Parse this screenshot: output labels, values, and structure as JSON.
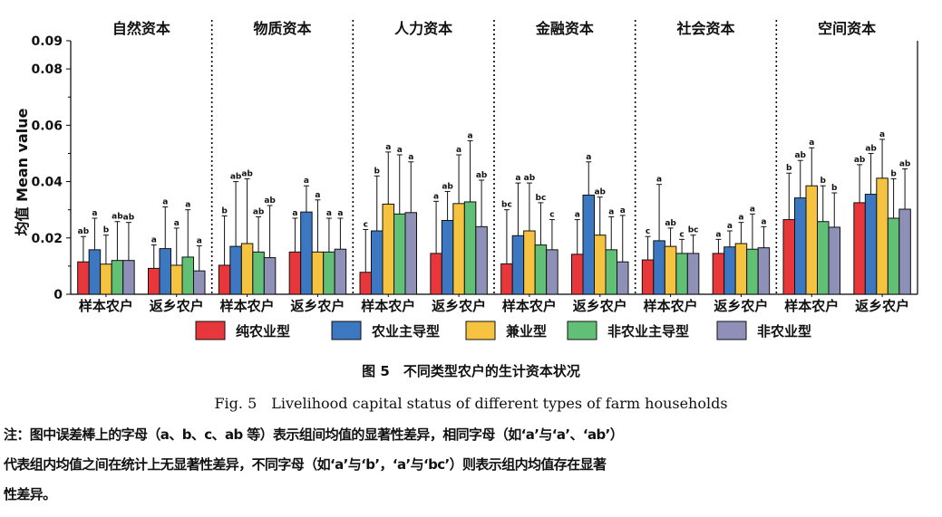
{
  "chart_data": {
    "type": "bar",
    "ylabel": "均值 Mean value",
    "ylim": [
      0,
      0.09
    ],
    "yticks": [
      "0",
      "0.02",
      "0.04",
      "0.06",
      "0.08",
      "0.09"
    ],
    "ytick_values": [
      0,
      0.02,
      0.04,
      0.06,
      0.08,
      0.09
    ],
    "legend_position": "bottom",
    "series": [
      {
        "name": "纯农业型",
        "color": "#e8373b"
      },
      {
        "name": "农业主导型",
        "color": "#3b78c1"
      },
      {
        "name": "兼业型",
        "color": "#f6c341"
      },
      {
        "name": "非农业主导型",
        "color": "#62bf76"
      },
      {
        "name": "非农业型",
        "color": "#8e90b8"
      }
    ],
    "panels": [
      {
        "title": "自然资本",
        "groups": [
          {
            "label": "样本农户",
            "values": [
              0.0115,
              0.0158,
              0.0107,
              0.012,
              0.012
            ],
            "errors": [
              0.0205,
              0.027,
              0.021,
              0.0258,
              0.0255
            ],
            "letters": [
              "ab",
              "a",
              "b",
              "ab",
              "ab"
            ]
          },
          {
            "label": "返乡农户",
            "values": [
              0.0092,
              0.0162,
              0.0103,
              0.0132,
              0.0083
            ],
            "errors": [
              0.0175,
              0.031,
              0.0235,
              0.03,
              0.0172
            ],
            "letters": [
              "a",
              "a",
              "a",
              "a",
              "a"
            ]
          }
        ]
      },
      {
        "title": "物质资本",
        "groups": [
          {
            "label": "样本农户",
            "values": [
              0.0103,
              0.017,
              0.018,
              0.015,
              0.013
            ],
            "errors": [
              0.0278,
              0.04,
              0.041,
              0.0275,
              0.0315
            ],
            "letters": [
              "b",
              "ab",
              "ab",
              "ab",
              "ab"
            ]
          },
          {
            "label": "返乡农户",
            "values": [
              0.015,
              0.0292,
              0.015,
              0.015,
              0.016
            ],
            "errors": [
              0.027,
              0.0385,
              0.0335,
              0.027,
              0.027
            ],
            "letters": [
              "a",
              "a",
              "a",
              "a",
              "a"
            ]
          }
        ]
      },
      {
        "title": "人力资本",
        "groups": [
          {
            "label": "样本农户",
            "values": [
              0.0078,
              0.0225,
              0.032,
              0.0285,
              0.029
            ],
            "errors": [
              0.023,
              0.042,
              0.0505,
              0.0495,
              0.047
            ],
            "letters": [
              "c",
              "b",
              "a",
              "a",
              "a"
            ]
          },
          {
            "label": "返乡农户",
            "values": [
              0.0145,
              0.0262,
              0.0322,
              0.0328,
              0.024
            ],
            "errors": [
              0.033,
              0.0365,
              0.0495,
              0.0545,
              0.0405
            ],
            "letters": [
              "a",
              "ab",
              "a",
              "a",
              "ab"
            ]
          }
        ]
      },
      {
        "title": "金融资本",
        "groups": [
          {
            "label": "样本农户",
            "values": [
              0.0108,
              0.0208,
              0.0225,
              0.0175,
              0.0158
            ],
            "errors": [
              0.03,
              0.0395,
              0.0395,
              0.0325,
              0.0265
            ],
            "letters": [
              "bc",
              "a",
              "ab",
              "bc",
              "c"
            ]
          },
          {
            "label": "返乡农户",
            "values": [
              0.0142,
              0.0352,
              0.021,
              0.0158,
              0.0115
            ],
            "errors": [
              0.0265,
              0.047,
              0.0345,
              0.0275,
              0.028
            ],
            "letters": [
              "a",
              "a",
              "ab",
              "a",
              "a"
            ]
          }
        ]
      },
      {
        "title": "社会资本",
        "groups": [
          {
            "label": "样本农户",
            "values": [
              0.0122,
              0.019,
              0.017,
              0.0145,
              0.0145
            ],
            "errors": [
              0.0205,
              0.039,
              0.0235,
              0.0195,
              0.021
            ],
            "letters": [
              "c",
              "a",
              "ab",
              "c",
              "bc"
            ]
          },
          {
            "label": "返乡农户",
            "values": [
              0.0145,
              0.0168,
              0.018,
              0.016,
              0.0165
            ],
            "errors": [
              0.0195,
              0.0225,
              0.0255,
              0.0285,
              0.024
            ],
            "letters": [
              "a",
              "a",
              "a",
              "a",
              "a"
            ]
          }
        ]
      },
      {
        "title": "空间资本",
        "groups": [
          {
            "label": "样本农户",
            "values": [
              0.0265,
              0.0342,
              0.0385,
              0.0258,
              0.0238
            ],
            "errors": [
              0.043,
              0.0475,
              0.052,
              0.0385,
              0.036
            ],
            "letters": [
              "b",
              "ab",
              "a",
              "b",
              "b"
            ]
          },
          {
            "label": "返乡农户",
            "values": [
              0.0325,
              0.0355,
              0.0412,
              0.027,
              0.0302
            ],
            "errors": [
              0.046,
              0.05,
              0.055,
              0.041,
              0.0445
            ],
            "letters": [
              "ab",
              "ab",
              "a",
              "b",
              "ab"
            ]
          }
        ]
      }
    ]
  },
  "caption": {
    "cn": "图 5　不同类型农户的生计资本状况",
    "en": "Fig. 5　Livelihood capital status of different types of farm households"
  },
  "note": {
    "line1": "注：图中误差棒上的字母（a、b、c、ab 等）表示组间均值的显著性差异，相同字母（如‘a’与‘a’、‘ab’）",
    "line2": "代表组内均值之间在统计上无显著性差异，不同字母（如‘a’与‘b’，‘a’与‘bc’）则表示组内均值存在显著",
    "line3": "性差异。"
  }
}
